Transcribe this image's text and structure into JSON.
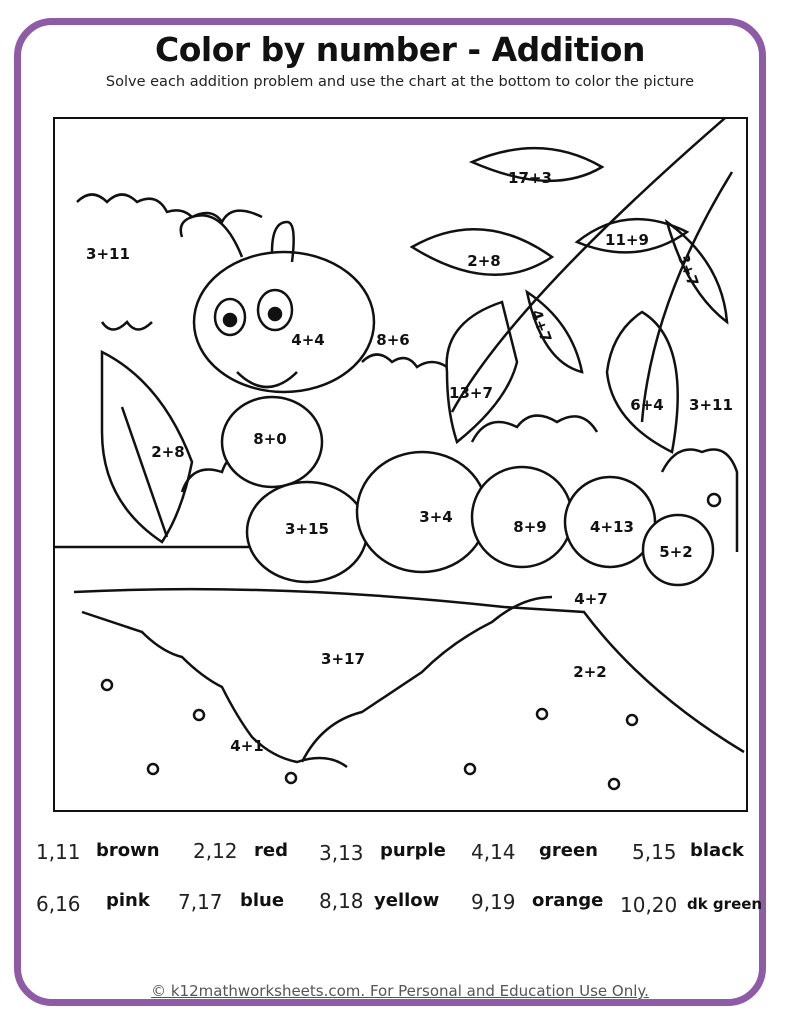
{
  "title": "Color by number - Addition",
  "subtitle": "Solve each addition problem and use the chart at the bottom to color the picture",
  "frame_color": "#8e5ba6",
  "problems": [
    "17+3",
    "3+11",
    "2+8",
    "11+9",
    "3+7",
    "4+7",
    "4+4",
    "8+6",
    "13+7",
    "6+4",
    "3+11",
    "2+8",
    "8+0",
    "3+4",
    "8+9",
    "4+13",
    "3+15",
    "5+2",
    "4+7",
    "3+17",
    "2+2",
    "4+1"
  ],
  "color_key": [
    {
      "numbers": "1,11",
      "color": "brown"
    },
    {
      "numbers": "2,12",
      "color": "red"
    },
    {
      "numbers": "3,13",
      "color": "purple"
    },
    {
      "numbers": "4,14",
      "color": "green"
    },
    {
      "numbers": "5,15",
      "color": "black"
    },
    {
      "numbers": "6,16",
      "color": "pink"
    },
    {
      "numbers": "7,17",
      "color": "blue"
    },
    {
      "numbers": "8,18",
      "color": "yellow"
    },
    {
      "numbers": "9,19",
      "color": "orange"
    },
    {
      "numbers": "10,20",
      "color": "dk green"
    }
  ],
  "footer": "© k12mathworksheets.com. For Personal and Education Use Only."
}
